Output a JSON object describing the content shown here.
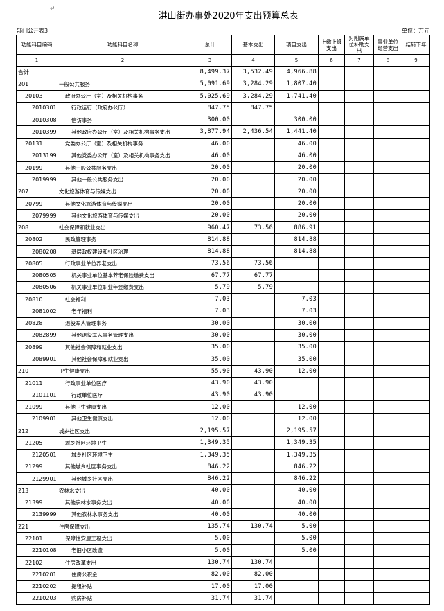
{
  "title": "洪山街办事处2020年支出预算总表",
  "subtitle": "部门公开表3",
  "unit": "单位：万元",
  "columns": [
    "功能科目编码",
    "功能科目名称",
    "总计",
    "基本支出",
    "项目支出",
    "上缴上级支出",
    "对附属单位补助支出",
    "事业单位经营支出",
    "结转下年"
  ],
  "column_numbers": [
    "1",
    "2",
    "3",
    "4",
    "5",
    "6",
    "7",
    "8",
    "9"
  ],
  "rows": [
    {
      "code": "合计",
      "name": "",
      "total": "8,499.37",
      "basic": "3,532.49",
      "project": "4,966.88",
      "level": 0
    },
    {
      "code": "201",
      "name": "一般公共服务",
      "total": "5,091.69",
      "basic": "3,284.29",
      "project": "1,807.40",
      "level": 0
    },
    {
      "code": "20103",
      "name": "政府办公厅（室）及相关机构事务",
      "total": "5,025.69",
      "basic": "3,284.29",
      "project": "1,741.40",
      "level": 1
    },
    {
      "code": "2010301",
      "name": "行政运行（政府办公厅）",
      "total": "847.75",
      "basic": "847.75",
      "project": "",
      "level": 2
    },
    {
      "code": "2010308",
      "name": "信访事务",
      "total": "300.00",
      "basic": "",
      "project": "300.00",
      "level": 2
    },
    {
      "code": "2010399",
      "name": "其他政府办公厅（室）及相关机构事务支出",
      "total": "3,877.94",
      "basic": "2,436.54",
      "project": "1,441.40",
      "level": 2
    },
    {
      "code": "20131",
      "name": "党委办公厅（室）及相关机构事务",
      "total": "46.00",
      "basic": "",
      "project": "46.00",
      "level": 1
    },
    {
      "code": "2013199",
      "name": "其他党委办公厅（室）及相关机构事务支出",
      "total": "46.00",
      "basic": "",
      "project": "46.00",
      "level": 2
    },
    {
      "code": "20199",
      "name": "其他一般公共服务支出",
      "total": "20.00",
      "basic": "",
      "project": "20.00",
      "level": 1
    },
    {
      "code": "2019999",
      "name": "其他一般公共服务支出",
      "total": "20.00",
      "basic": "",
      "project": "20.00",
      "level": 2
    },
    {
      "code": "207",
      "name": "文化旅游体育与传媒支出",
      "total": "20.00",
      "basic": "",
      "project": "20.00",
      "level": 0
    },
    {
      "code": "20799",
      "name": "其他文化旅游体育与传媒支出",
      "total": "20.00",
      "basic": "",
      "project": "20.00",
      "level": 1
    },
    {
      "code": "2079999",
      "name": "其他文化旅游体育与传媒支出",
      "total": "20.00",
      "basic": "",
      "project": "20.00",
      "level": 2
    },
    {
      "code": "208",
      "name": "社会保障和就业支出",
      "total": "960.47",
      "basic": "73.56",
      "project": "886.91",
      "level": 0
    },
    {
      "code": "20802",
      "name": "民政管理事务",
      "total": "814.88",
      "basic": "",
      "project": "814.88",
      "level": 1
    },
    {
      "code": "2080208",
      "name": "基层政权建设和社区治理",
      "total": "814.88",
      "basic": "",
      "project": "814.88",
      "level": 2
    },
    {
      "code": "20805",
      "name": "行政事业单位养老支出",
      "total": "73.56",
      "basic": "73.56",
      "project": "",
      "level": 1
    },
    {
      "code": "2080505",
      "name": "机关事业单位基本养老保险缴费支出",
      "total": "67.77",
      "basic": "67.77",
      "project": "",
      "level": 2
    },
    {
      "code": "2080506",
      "name": "机关事业单位职业年金缴费支出",
      "total": "5.79",
      "basic": "5.79",
      "project": "",
      "level": 2
    },
    {
      "code": "20810",
      "name": "社会福利",
      "total": "7.03",
      "basic": "",
      "project": "7.03",
      "level": 1
    },
    {
      "code": "2081002",
      "name": "老年福利",
      "total": "7.03",
      "basic": "",
      "project": "7.03",
      "level": 2
    },
    {
      "code": "20828",
      "name": "退役军人管理事务",
      "total": "30.00",
      "basic": "",
      "project": "30.00",
      "level": 1
    },
    {
      "code": "2082899",
      "name": "其他退役军人事务管理支出",
      "total": "30.00",
      "basic": "",
      "project": "30.00",
      "level": 2
    },
    {
      "code": "20899",
      "name": "其他社会保障和就业支出",
      "total": "35.00",
      "basic": "",
      "project": "35.00",
      "level": 1
    },
    {
      "code": "2089901",
      "name": "其他社会保障和就业支出",
      "total": "35.00",
      "basic": "",
      "project": "35.00",
      "level": 2
    },
    {
      "code": "210",
      "name": "卫生健康支出",
      "total": "55.90",
      "basic": "43.90",
      "project": "12.00",
      "level": 0
    },
    {
      "code": "21011",
      "name": "行政事业单位医疗",
      "total": "43.90",
      "basic": "43.90",
      "project": "",
      "level": 1
    },
    {
      "code": "2101101",
      "name": "行政单位医疗",
      "total": "43.90",
      "basic": "43.90",
      "project": "",
      "level": 2
    },
    {
      "code": "21099",
      "name": "其他卫生健康支出",
      "total": "12.00",
      "basic": "",
      "project": "12.00",
      "level": 1
    },
    {
      "code": "2109901",
      "name": "其他卫生健康支出",
      "total": "12.00",
      "basic": "",
      "project": "12.00",
      "level": 2
    },
    {
      "code": "212",
      "name": "城乡社区支出",
      "total": "2,195.57",
      "basic": "",
      "project": "2,195.57",
      "level": 0
    },
    {
      "code": "21205",
      "name": "城乡社区环境卫生",
      "total": "1,349.35",
      "basic": "",
      "project": "1,349.35",
      "level": 1
    },
    {
      "code": "2120501",
      "name": "城乡社区环境卫生",
      "total": "1,349.35",
      "basic": "",
      "project": "1,349.35",
      "level": 2
    },
    {
      "code": "21299",
      "name": "其他城乡社区事务支出",
      "total": "846.22",
      "basic": "",
      "project": "846.22",
      "level": 1
    },
    {
      "code": "2129901",
      "name": "其他城乡社区支出",
      "total": "846.22",
      "basic": "",
      "project": "846.22",
      "level": 2
    },
    {
      "code": "213",
      "name": "农林水支出",
      "total": "40.00",
      "basic": "",
      "project": "40.00",
      "level": 0
    },
    {
      "code": "21399",
      "name": "其他农林水事务支出",
      "total": "40.00",
      "basic": "",
      "project": "40.00",
      "level": 1
    },
    {
      "code": "2139999",
      "name": "其他农林水事务支出",
      "total": "40.00",
      "basic": "",
      "project": "40.00",
      "level": 2
    },
    {
      "code": "221",
      "name": "住房保障支出",
      "total": "135.74",
      "basic": "130.74",
      "project": "5.00",
      "level": 0
    },
    {
      "code": "22101",
      "name": "保障性安居工程支出",
      "total": "5.00",
      "basic": "",
      "project": "5.00",
      "level": 1
    },
    {
      "code": "2210108",
      "name": "老旧小区改造",
      "total": "5.00",
      "basic": "",
      "project": "5.00",
      "level": 2
    },
    {
      "code": "22102",
      "name": "住房改革支出",
      "total": "130.74",
      "basic": "130.74",
      "project": "",
      "level": 1
    },
    {
      "code": "2210201",
      "name": "住房公积金",
      "total": "82.00",
      "basic": "82.00",
      "project": "",
      "level": 2
    },
    {
      "code": "2210202",
      "name": "提租补贴",
      "total": "17.00",
      "basic": "17.00",
      "project": "",
      "level": 2
    },
    {
      "code": "2210203",
      "name": "购房补贴",
      "total": "31.74",
      "basic": "31.74",
      "project": "",
      "level": 2
    }
  ]
}
